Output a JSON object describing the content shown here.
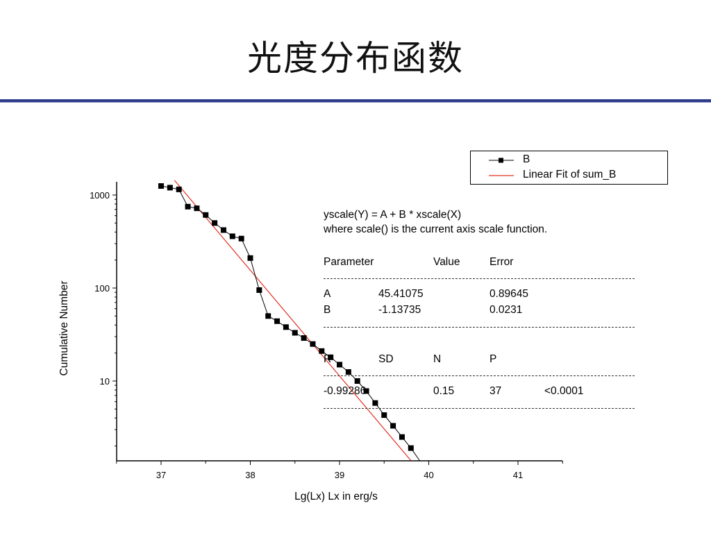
{
  "slide": {
    "title": "光度分布函数"
  },
  "chart_data": {
    "type": "scatter",
    "x_axis": {
      "label": "Lg(Lx) Lx in erg/s",
      "range": [
        36.5,
        41.5
      ],
      "ticks": [
        "37",
        "38",
        "39",
        "40",
        "41"
      ],
      "tick_values": [
        37,
        38,
        39,
        40,
        41
      ]
    },
    "y_axis": {
      "label": "Cumulative Number",
      "scale": "log",
      "range": [
        1.5,
        1600
      ],
      "ticks": [
        "10",
        "100",
        "1000"
      ],
      "tick_values": [
        10,
        100,
        1000
      ]
    },
    "legend": {
      "position": "top-right",
      "entries": [
        {
          "label": "B",
          "style": "line-square-marker",
          "color": "#000000"
        },
        {
          "label": "Linear Fit of sum_B",
          "style": "line",
          "color": "#e03020"
        }
      ]
    },
    "series": [
      {
        "name": "B",
        "x": [
          37.0,
          37.1,
          37.2,
          37.3,
          37.4,
          37.5,
          37.6,
          37.7,
          37.8,
          37.9,
          38.0,
          38.1,
          38.2,
          38.3,
          38.4,
          38.5,
          38.6,
          38.7,
          38.8,
          38.9,
          39.0,
          39.1,
          39.2,
          39.3,
          39.4,
          39.5,
          39.6,
          39.7,
          39.8,
          39.9
        ],
        "y": [
          1250,
          1200,
          1150,
          750,
          720,
          610,
          500,
          420,
          360,
          340,
          210,
          95,
          50,
          44,
          38,
          33,
          29,
          25,
          21,
          18,
          15,
          12.5,
          10,
          7.8,
          5.8,
          4.3,
          3.3,
          2.5,
          1.9,
          1.3
        ]
      },
      {
        "name": "Linear Fit of sum_B",
        "type": "line",
        "A": 45.41075,
        "B": -1.13735,
        "x": [
          37.15,
          39.8
        ]
      }
    ],
    "fit_equation_line1": "yscale(Y) = A + B * xscale(X)",
    "fit_equation_line2": "where scale() is the current axis scale function.",
    "param_header": [
      "Parameter",
      "Value",
      "Error"
    ],
    "params": [
      {
        "name": "A",
        "value": "45.41075",
        "error": "0.89645"
      },
      {
        "name": "B",
        "value": "-1.13735",
        "error": "0.0231"
      }
    ],
    "stats_header": [
      "R",
      "SD",
      "N",
      "P"
    ],
    "stats_values": [
      "-0.99286",
      "0.15",
      "37",
      "<0.0001"
    ],
    "grid": false
  }
}
